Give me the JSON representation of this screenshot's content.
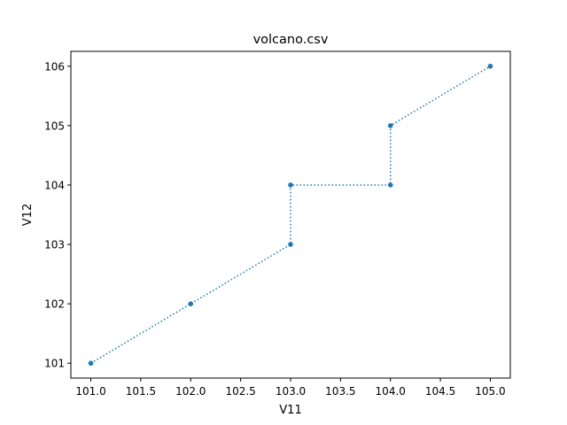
{
  "chart_data": {
    "type": "line",
    "title": "volcano.csv",
    "xlabel": "V11",
    "ylabel": "V12",
    "xlim": [
      100.8,
      105.2
    ],
    "ylim": [
      100.75,
      106.25
    ],
    "xticks": [
      "101.0",
      "101.5",
      "102.0",
      "102.5",
      "103.0",
      "103.5",
      "104.0",
      "104.5",
      "105.0"
    ],
    "yticks": [
      "101",
      "102",
      "103",
      "104",
      "105",
      "106"
    ],
    "grid": false,
    "line_style": "dotted",
    "marker": "circle",
    "series": [
      {
        "color": "#1f77b4",
        "x": [
          101.0,
          102.0,
          103.0,
          103.0,
          104.0,
          104.0,
          105.0
        ],
        "y": [
          101,
          102,
          103,
          104,
          104,
          105,
          106
        ]
      }
    ]
  }
}
